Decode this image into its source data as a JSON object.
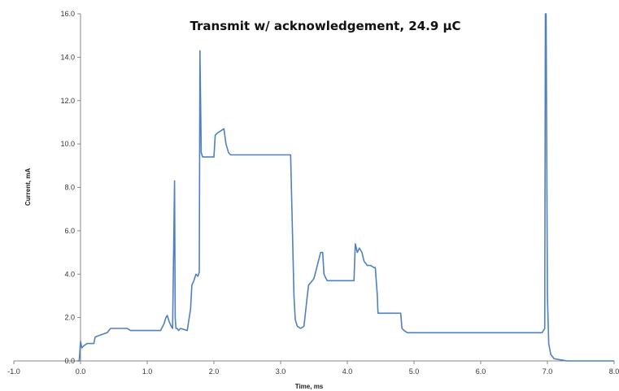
{
  "chart_data": {
    "type": "line",
    "title": "Transmit w/ acknowledgement, 24.9 μC",
    "xlabel": "Time, ms",
    "ylabel": "Current, mA",
    "xlim": [
      -1.0,
      8.0
    ],
    "ylim": [
      0.0,
      16.0
    ],
    "xticks": [
      "-1.0",
      "0.0",
      "1.0",
      "2.0",
      "3.0",
      "4.0",
      "5.0",
      "6.0",
      "7.0",
      "8.0"
    ],
    "yticks": [
      "0.0",
      "2.0",
      "4.0",
      "6.0",
      "8.0",
      "10.0",
      "12.0",
      "14.0",
      "16.0"
    ],
    "grid": false,
    "legend": "none",
    "line_color": "#4f81bd",
    "series": [
      {
        "x": [
          -0.05,
          -0.02,
          0.0,
          0.02,
          0.05,
          0.1,
          0.2,
          0.22,
          0.3,
          0.4,
          0.45,
          0.5,
          0.6,
          0.7,
          0.75,
          0.8,
          0.9,
          1.0,
          1.1,
          1.2,
          1.25,
          1.28,
          1.3,
          1.33,
          1.36,
          1.38,
          1.41,
          1.42,
          1.43,
          1.45,
          1.47,
          1.5,
          1.6,
          1.65,
          1.67,
          1.7,
          1.73,
          1.76,
          1.78,
          1.79,
          1.8,
          1.81,
          1.83,
          1.9,
          2.0,
          2.02,
          2.05,
          2.1,
          2.15,
          2.18,
          2.22,
          2.25,
          2.3,
          2.4,
          2.6,
          2.8,
          3.0,
          3.15,
          3.2,
          3.22,
          3.25,
          3.3,
          3.35,
          3.4,
          3.42,
          3.45,
          3.5,
          3.55,
          3.6,
          3.63,
          3.65,
          3.68,
          3.7,
          3.8,
          3.9,
          4.0,
          4.1,
          4.12,
          4.15,
          4.18,
          4.22,
          4.25,
          4.3,
          4.35,
          4.4,
          4.42,
          4.45,
          4.46,
          4.5,
          4.6,
          4.7,
          4.8,
          4.82,
          4.85,
          4.9,
          5.0,
          5.2,
          5.5,
          5.8,
          6.0,
          6.3,
          6.6,
          6.8,
          6.92,
          6.96,
          6.97,
          6.98,
          7.0,
          7.02,
          7.05,
          7.1,
          7.2,
          7.3,
          7.5,
          7.7,
          8.0
        ],
        "values": [
          0.0,
          0.0,
          0.9,
          0.6,
          0.7,
          0.8,
          0.8,
          1.1,
          1.2,
          1.3,
          1.5,
          1.5,
          1.5,
          1.5,
          1.4,
          1.4,
          1.4,
          1.4,
          1.4,
          1.4,
          1.7,
          2.0,
          2.1,
          1.8,
          1.6,
          1.5,
          8.3,
          2.0,
          1.5,
          1.5,
          1.4,
          1.5,
          1.4,
          2.4,
          3.5,
          3.7,
          4.0,
          3.9,
          4.1,
          14.3,
          12.0,
          9.6,
          9.4,
          9.4,
          9.4,
          10.4,
          10.5,
          10.6,
          10.7,
          10.0,
          9.6,
          9.5,
          9.5,
          9.5,
          9.5,
          9.5,
          9.5,
          9.5,
          3.0,
          1.9,
          1.6,
          1.5,
          1.6,
          3.0,
          3.5,
          3.6,
          3.8,
          4.4,
          5.0,
          5.0,
          4.0,
          3.8,
          3.7,
          3.7,
          3.7,
          3.7,
          3.7,
          5.4,
          5.0,
          5.2,
          5.0,
          4.6,
          4.4,
          4.4,
          4.3,
          4.3,
          3.0,
          2.2,
          2.2,
          2.2,
          2.2,
          2.2,
          1.5,
          1.4,
          1.3,
          1.3,
          1.3,
          1.3,
          1.3,
          1.3,
          1.3,
          1.3,
          1.3,
          1.3,
          1.5,
          16.0,
          16.0,
          3.0,
          0.8,
          0.3,
          0.1,
          0.05,
          0.0,
          0.0,
          0.0,
          0.0
        ]
      }
    ]
  }
}
